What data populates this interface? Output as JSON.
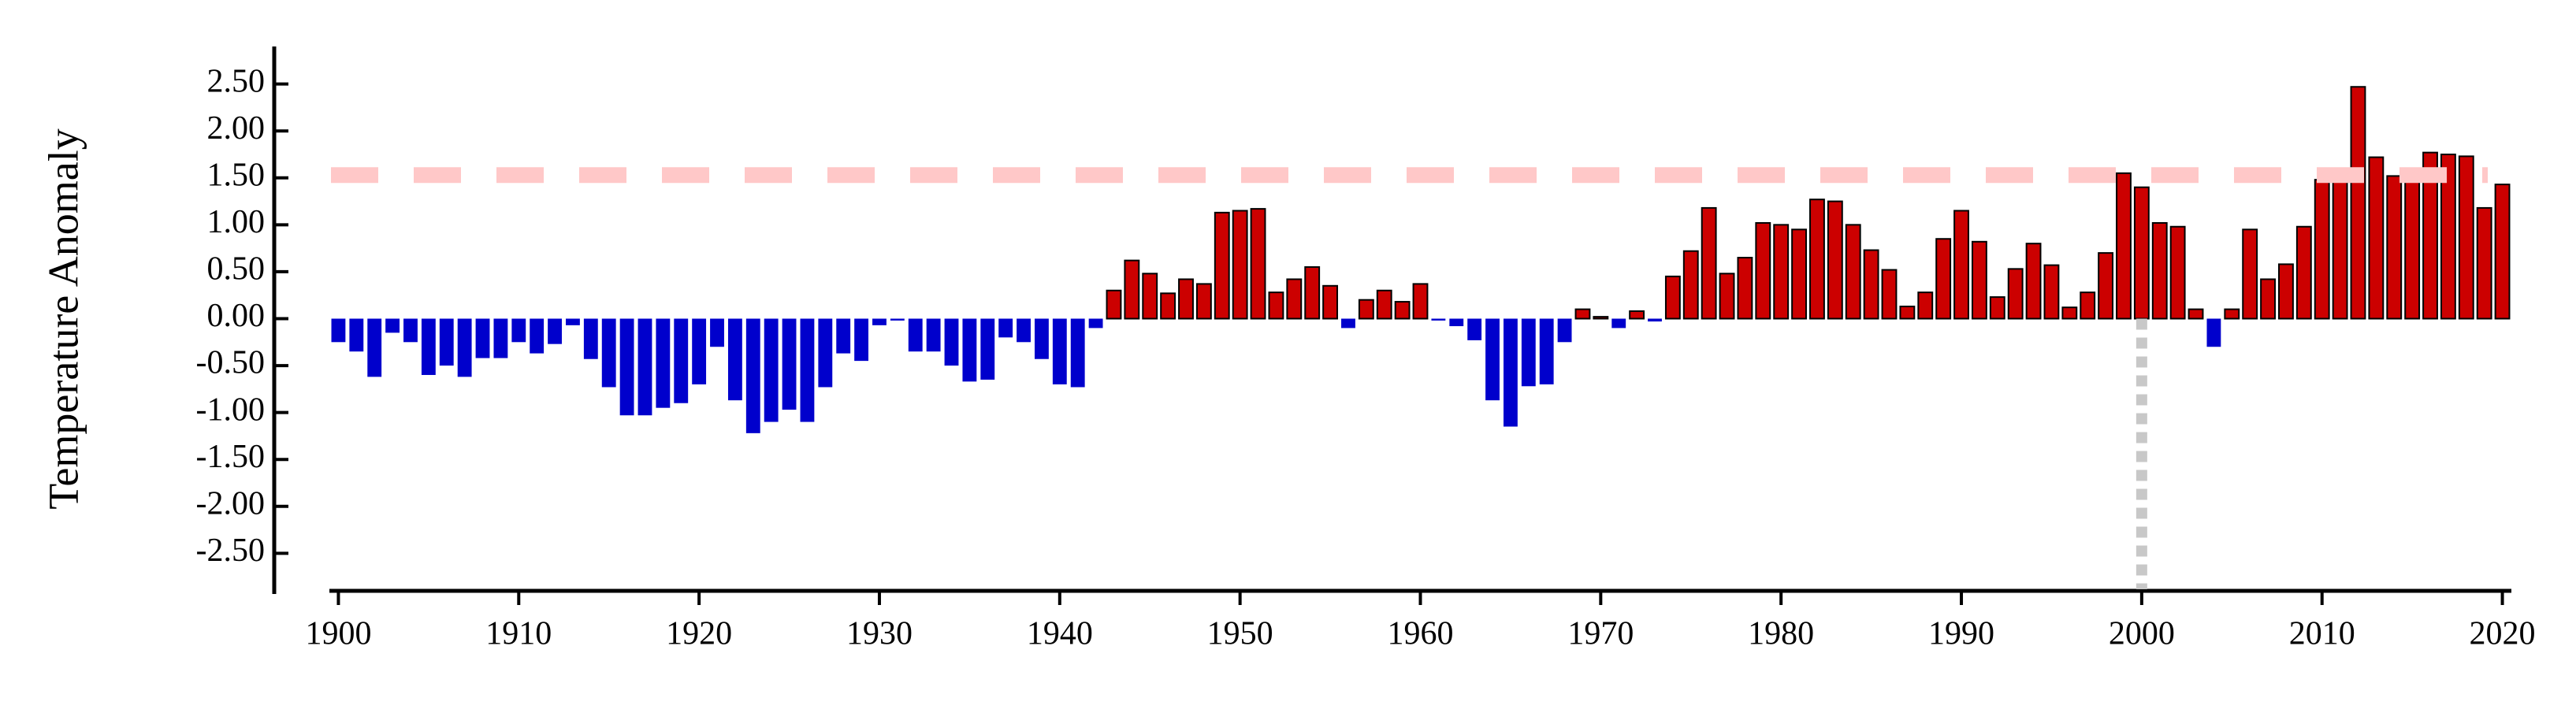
{
  "chart_data": {
    "type": "bar",
    "y_label": "Temperature Anomaly",
    "x": [
      1900,
      1901,
      1902,
      1903,
      1904,
      1905,
      1906,
      1907,
      1908,
      1909,
      1910,
      1911,
      1912,
      1913,
      1914,
      1915,
      1916,
      1917,
      1918,
      1919,
      1920,
      1921,
      1922,
      1923,
      1924,
      1925,
      1926,
      1927,
      1928,
      1929,
      1930,
      1931,
      1932,
      1933,
      1934,
      1935,
      1936,
      1937,
      1938,
      1939,
      1940,
      1941,
      1942,
      1943,
      1944,
      1945,
      1946,
      1947,
      1948,
      1949,
      1950,
      1951,
      1952,
      1953,
      1954,
      1955,
      1956,
      1957,
      1958,
      1959,
      1960,
      1961,
      1962,
      1963,
      1964,
      1965,
      1966,
      1967,
      1968,
      1969,
      1970,
      1971,
      1972,
      1973,
      1974,
      1975,
      1976,
      1977,
      1978,
      1979,
      1980,
      1981,
      1982,
      1983,
      1984,
      1985,
      1986,
      1987,
      1988,
      1989,
      1990,
      1991,
      1992,
      1993,
      1994,
      1995,
      1996,
      1997,
      1998,
      1999,
      2000,
      2001,
      2002,
      2003,
      2004,
      2005,
      2006,
      2007,
      2008,
      2009,
      2010,
      2011,
      2012,
      2013,
      2014,
      2015,
      2016,
      2017,
      2018,
      2019,
      2020
    ],
    "values": [
      -0.25,
      -0.35,
      -0.62,
      -0.15,
      -0.25,
      -0.6,
      -0.5,
      -0.62,
      -0.42,
      -0.42,
      -0.25,
      -0.37,
      -0.27,
      -0.07,
      -0.43,
      -0.73,
      -1.03,
      -1.03,
      -0.95,
      -0.9,
      -0.7,
      -0.3,
      -0.87,
      -1.22,
      -1.1,
      -0.97,
      -1.1,
      -0.73,
      -0.37,
      -0.45,
      -0.07,
      -0.02,
      -0.35,
      -0.35,
      -0.5,
      -0.67,
      -0.65,
      -0.2,
      -0.25,
      -0.43,
      -0.7,
      -0.73,
      -0.1,
      0.3,
      0.62,
      0.48,
      0.27,
      0.42,
      0.37,
      1.13,
      1.15,
      1.17,
      0.28,
      0.42,
      0.55,
      0.35,
      -0.1,
      0.2,
      0.3,
      0.18,
      0.37,
      -0.02,
      -0.08,
      -0.23,
      -0.87,
      -1.15,
      -0.72,
      -0.7,
      -0.25,
      0.1,
      0.02,
      -0.1,
      0.08,
      -0.03,
      0.45,
      0.72,
      1.18,
      0.48,
      0.65,
      1.02,
      1.0,
      0.95,
      1.27,
      1.25,
      1.0,
      0.73,
      0.52,
      0.13,
      0.28,
      0.85,
      1.15,
      0.82,
      0.23,
      0.53,
      0.8,
      0.57,
      0.12,
      0.28,
      0.7,
      1.55,
      1.4,
      1.02,
      0.98,
      0.1,
      -0.3,
      0.1,
      0.95,
      0.42,
      0.58,
      0.98,
      1.48,
      1.55,
      2.47,
      1.72,
      1.52,
      1.48,
      1.77,
      1.75,
      1.73,
      1.18,
      1.43
    ],
    "color_positive": "#cc0000",
    "color_negative": "#0000cc",
    "xlim": [
      1899.5,
      2020.5
    ],
    "xticks": [
      1900,
      1910,
      1920,
      1930,
      1940,
      1950,
      1960,
      1970,
      1980,
      1990,
      2000,
      2010,
      2020
    ],
    "ylim": [
      -2.9,
      2.9
    ],
    "yticks": [
      {
        "value": 2.5,
        "label": "2.50"
      },
      {
        "value": 2.0,
        "label": "2.00"
      },
      {
        "value": 1.5,
        "label": "1.50"
      },
      {
        "value": 1.0,
        "label": "1.00"
      },
      {
        "value": 0.5,
        "label": "0.50"
      },
      {
        "value": 0,
        "label": "0.00"
      },
      {
        "value": -0.5,
        "label": "-0.50"
      },
      {
        "value": -1.0,
        "label": "-1.00"
      },
      {
        "value": -1.5,
        "label": "-1.50"
      },
      {
        "value": -2.0,
        "label": "-2.00"
      },
      {
        "value": -2.5,
        "label": "-2.50"
      }
    ],
    "hline": {
      "value": 1.53,
      "color": "#ffc8c8"
    },
    "vline": {
      "value": 2000,
      "color": "#c8c8c8"
    }
  }
}
